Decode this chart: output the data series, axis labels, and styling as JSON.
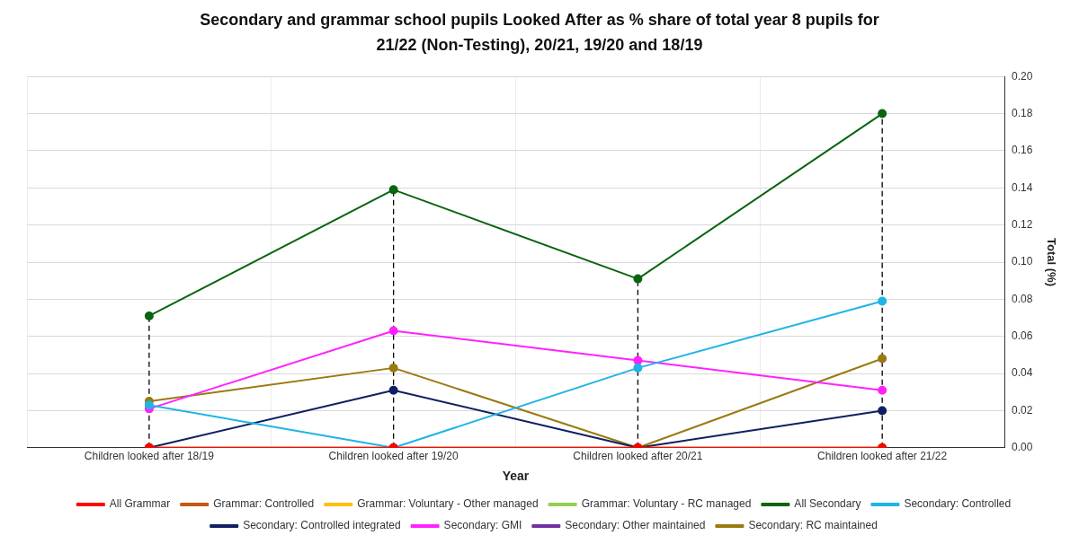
{
  "chart_data": {
    "type": "line",
    "title": "Secondary and grammar school pupils Looked After as % share of total year 8 pupils for 21/22 (Non-Testing), 20/21, 19/20 and 18/19",
    "xlabel": "Year",
    "ylabel": "Total (%)",
    "categories": [
      "Children looked after 18/19",
      "Children looked after 19/20",
      "Children looked after 20/21",
      "Children looked after 21/22"
    ],
    "series": [
      {
        "name": "All Grammar",
        "color": "#ff0000",
        "values": [
          0,
          0,
          0,
          0
        ]
      },
      {
        "name": "Grammar: Controlled",
        "color": "#c55a11",
        "values": [
          0,
          0,
          0,
          0
        ]
      },
      {
        "name": "Grammar: Voluntary - Other managed",
        "color": "#ffc000",
        "values": [
          null,
          null,
          null,
          null
        ]
      },
      {
        "name": "Grammar: Voluntary - RC managed",
        "color": "#92d050",
        "values": [
          null,
          null,
          null,
          null
        ]
      },
      {
        "name": "All Secondary",
        "color": "#0a6410",
        "values": [
          0.071,
          0.139,
          0.091,
          0.18
        ]
      },
      {
        "name": "Secondary: Controlled",
        "color": "#1fb4e6",
        "values": [
          0.023,
          0,
          0.043,
          0.079
        ]
      },
      {
        "name": "Secondary: Controlled integrated",
        "color": "#0e2060",
        "values": [
          0,
          0.031,
          0,
          0.02
        ]
      },
      {
        "name": "Secondary: GMI",
        "color": "#ff22ff",
        "values": [
          0.021,
          0.063,
          0.047,
          0.031
        ]
      },
      {
        "name": "Secondary: Other maintained",
        "color": "#7030a0",
        "values": [
          null,
          null,
          null,
          null
        ]
      },
      {
        "name": "Secondary: RC maintained",
        "color": "#9a7a10",
        "values": [
          0.025,
          0.043,
          0,
          0.048
        ]
      }
    ],
    "ylim": [
      0,
      0.2
    ],
    "yticks": [
      {
        "value": 0,
        "label": "0.00"
      },
      {
        "value": 0.02,
        "label": "0.02"
      },
      {
        "value": 0.04,
        "label": "0.04"
      },
      {
        "value": 0.06,
        "label": "0.06"
      },
      {
        "value": 0.08,
        "label": "0.08"
      },
      {
        "value": 0.1,
        "label": "0.10"
      },
      {
        "value": 0.12,
        "label": "0.12"
      },
      {
        "value": 0.14,
        "label": "0.14"
      },
      {
        "value": 0.16,
        "label": "0.16"
      },
      {
        "value": 0.18,
        "label": "0.18"
      },
      {
        "value": 0.2,
        "label": "0.20"
      }
    ],
    "ref_lines": [
      {
        "axis": "x",
        "value": "Children looked after 18/19",
        "color": "#000000",
        "line_style": "dashed"
      },
      {
        "axis": "x",
        "value": "Children looked after 19/20",
        "color": "#000000",
        "line_style": "dashed"
      },
      {
        "axis": "x",
        "value": "Children looked after 20/21",
        "color": "#000000",
        "line_style": "dashed"
      },
      {
        "axis": "x",
        "value": "Children looked after 21/22",
        "color": "#000000",
        "line_style": "dashed"
      }
    ],
    "grid": true,
    "legend": "bottom",
    "marker": "circle",
    "line_style": "solid"
  }
}
